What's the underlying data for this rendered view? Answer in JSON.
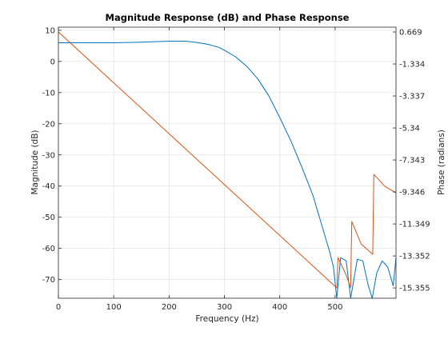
{
  "chart_data": {
    "type": "line",
    "title": "Magnitude Response (dB) and Phase Response",
    "xlabel": "Frequency (Hz)",
    "ylabel_left": "Magnitude (dB)",
    "ylabel_right": "Phase (radians)",
    "xlim": [
      0,
      610
    ],
    "ylim_left": [
      -76,
      11
    ],
    "ylim_right": [
      -16.0,
      0.97
    ],
    "grid": true,
    "x_ticks": [
      0,
      100,
      200,
      300,
      400,
      500
    ],
    "x_tick_labels": [
      "0",
      "100",
      "200",
      "300",
      "400",
      "500"
    ],
    "y_left_ticks": [
      10,
      0,
      -10,
      -20,
      -30,
      -40,
      -50,
      -60,
      -70
    ],
    "y_left_tick_labels": [
      "10",
      "0",
      "-10",
      "-20",
      "-30",
      "-40",
      "-50",
      "-60",
      "-70"
    ],
    "y_right_ticks": [
      0.669,
      -1.334,
      -3.337,
      -5.34,
      -7.343,
      -9.346,
      -11.349,
      -13.352,
      -15.355
    ],
    "y_right_tick_labels": [
      "0.669",
      "-1.334",
      "-3.337",
      "-5.34",
      "-7.343",
      "-9.346",
      "-11.349",
      "-13.352",
      "-15.355"
    ],
    "colors": {
      "magnitude": "#0072BD",
      "phase": "#D95319",
      "grid": "#e2e2e2",
      "axes": "#262626"
    },
    "series": [
      {
        "axis": "left",
        "color": "#0072BD",
        "x": [
          0,
          100,
          150,
          200,
          230,
          250,
          270,
          290,
          300,
          320,
          340,
          360,
          380,
          400,
          420,
          440,
          460,
          475,
          490,
          497,
          503,
          505,
          510,
          520,
          528,
          532,
          540,
          550,
          560,
          567,
          575,
          585,
          595,
          605,
          610
        ],
        "y": [
          6,
          6,
          6.2,
          6.5,
          6.5,
          6.1,
          5.5,
          4.5,
          3.6,
          1.5,
          -1.5,
          -5.5,
          -11,
          -18,
          -25.5,
          -34,
          -43,
          -52,
          -61,
          -66,
          -76,
          -72,
          -63,
          -64,
          -76,
          -72,
          -63.5,
          -64,
          -72,
          -76,
          -68,
          -64,
          -66,
          -72,
          -63
        ]
      },
      {
        "axis": "right",
        "color": "#D95319",
        "x": [
          0,
          503,
          505,
          520,
          528,
          530,
          547,
          568,
          570,
          590,
          610
        ],
        "y": [
          0.669,
          -15.355,
          -13.45,
          -14.55,
          -15.355,
          -11.2,
          -12.6,
          -13.25,
          -8.25,
          -9.0,
          -9.4
        ]
      }
    ]
  }
}
